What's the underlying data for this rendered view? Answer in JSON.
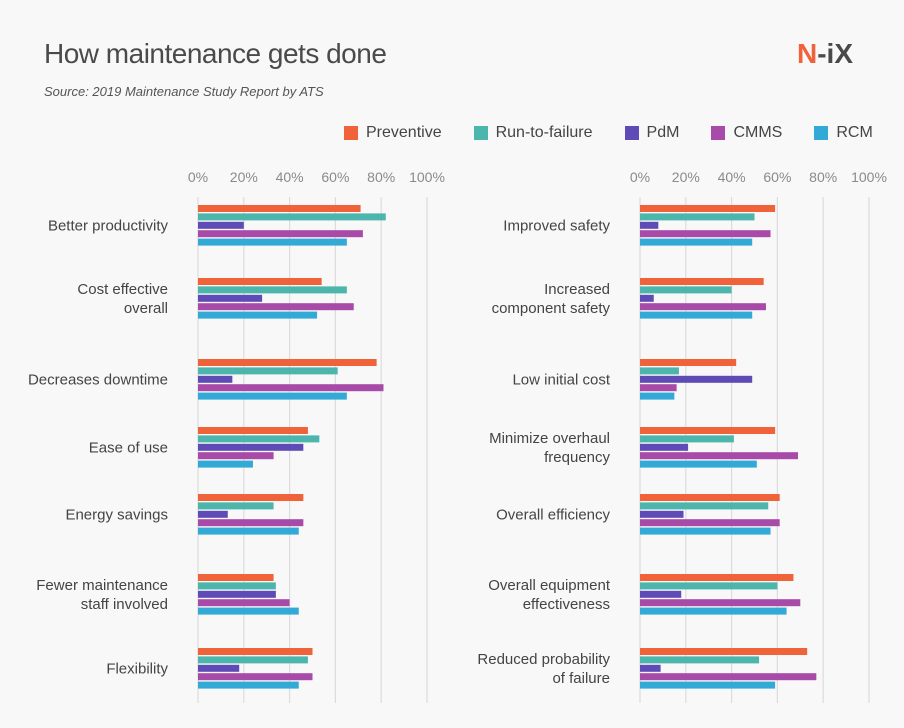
{
  "header": {
    "title": "How maintenance gets done",
    "subtitle": "Source: 2019 Maintenance Study Report by ATS",
    "logo": "N-iX"
  },
  "colors": {
    "Preventive": "#f0623a",
    "Run-to-failure": "#4db6ac",
    "PdM": "#5e4bb5",
    "CMMS": "#a84aa8",
    "RCM": "#33a9d6",
    "grid": "#dcdcdc"
  },
  "legend": [
    "Preventive",
    "Run-to-failure",
    "PdM",
    "CMMS",
    "RCM"
  ],
  "chart_data": [
    {
      "type": "bar",
      "orientation": "horizontal",
      "xlim": [
        0,
        100
      ],
      "x_ticks": [
        "0%",
        "20%",
        "40%",
        "60%",
        "80%",
        "100%"
      ],
      "grid": true,
      "legend_position": "top-right",
      "categories": [
        [
          "Better productivity"
        ],
        [
          "Cost effective",
          "overall"
        ],
        [
          "Decreases downtime"
        ],
        [
          "Ease of use"
        ],
        [
          "Energy savings"
        ],
        [
          "Fewer maintenance",
          "staff involved"
        ],
        [
          "Flexibility"
        ]
      ],
      "series": [
        {
          "name": "Preventive",
          "values": [
            71,
            54,
            78,
            48,
            46,
            33,
            50
          ]
        },
        {
          "name": "Run-to-failure",
          "values": [
            82,
            65,
            61,
            53,
            33,
            34,
            48
          ]
        },
        {
          "name": "PdM",
          "values": [
            20,
            28,
            15,
            46,
            13,
            34,
            18
          ]
        },
        {
          "name": "CMMS",
          "values": [
            72,
            68,
            81,
            33,
            46,
            40,
            50
          ]
        },
        {
          "name": "RCM",
          "values": [
            65,
            52,
            65,
            24,
            44,
            44,
            44
          ]
        }
      ]
    },
    {
      "type": "bar",
      "orientation": "horizontal",
      "xlim": [
        0,
        100
      ],
      "x_ticks": [
        "0%",
        "20%",
        "40%",
        "60%",
        "80%",
        "100%"
      ],
      "grid": true,
      "legend_position": "top-right",
      "categories": [
        [
          "Improved safety"
        ],
        [
          "Increased",
          "component safety"
        ],
        [
          "Low initial cost"
        ],
        [
          "Minimize overhaul",
          "frequency"
        ],
        [
          "Overall efficiency"
        ],
        [
          "Overall equipment",
          "effectiveness"
        ],
        [
          "Reduced probability",
          "of failure"
        ]
      ],
      "series": [
        {
          "name": "Preventive",
          "values": [
            59,
            54,
            42,
            59,
            61,
            67,
            73
          ]
        },
        {
          "name": "Run-to-failure",
          "values": [
            50,
            40,
            17,
            41,
            56,
            60,
            52
          ]
        },
        {
          "name": "PdM",
          "values": [
            8,
            6,
            49,
            21,
            19,
            18,
            9
          ]
        },
        {
          "name": "CMMS",
          "values": [
            57,
            55,
            16,
            69,
            61,
            70,
            77
          ]
        },
        {
          "name": "RCM",
          "values": [
            49,
            49,
            15,
            51,
            57,
            64,
            59
          ]
        }
      ]
    }
  ]
}
